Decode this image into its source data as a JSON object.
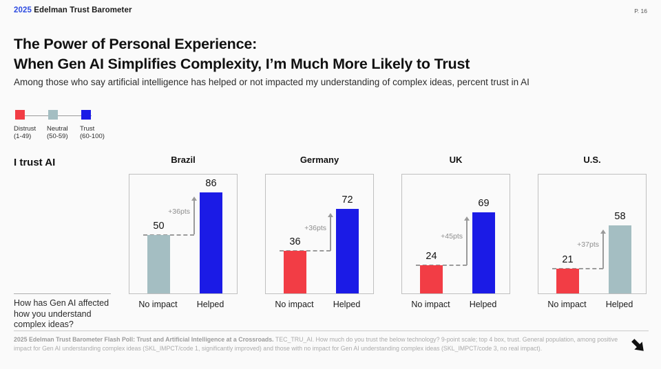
{
  "header": {
    "year": "2025",
    "brand": "Edelman Trust Barometer",
    "page": "P. 16"
  },
  "title": {
    "line1": "The Power of Personal Experience:",
    "line2": "When Gen AI Simplifies Complexity, I’m Much More Likely to Trust"
  },
  "subtitle": "Among those who say artificial intelligence has helped or not impacted my understanding of complex ideas, percent trust in AI",
  "colors": {
    "distrust": "#F23D45",
    "neutral": "#A4BEC2",
    "trust": "#1B1BE6",
    "accent_blue": "#2D4BE1",
    "annotation_gray": "#9a9a9a"
  },
  "legend": {
    "items": [
      {
        "label": "Distrust",
        "range": "(1-49)",
        "color_key": "distrust"
      },
      {
        "label": "Neutral",
        "range": "(50-59)",
        "color_key": "neutral"
      },
      {
        "label": "Trust",
        "range": "(60-100)",
        "color_key": "trust"
      }
    ]
  },
  "row_label": "I trust AI",
  "question": "How has Gen AI affected how you understand complex ideas?",
  "chart_data": {
    "type": "bar",
    "categories": [
      "No impact",
      "Helped"
    ],
    "unit": "percent trust in AI",
    "ylim": [
      0,
      100
    ],
    "grid": false,
    "groups": [
      {
        "country": "Brazil",
        "values": [
          50,
          86
        ],
        "color_keys": [
          "neutral",
          "trust"
        ],
        "delta": "+36pts"
      },
      {
        "country": "Germany",
        "values": [
          36,
          72
        ],
        "color_keys": [
          "distrust",
          "trust"
        ],
        "delta": "+36pts"
      },
      {
        "country": "UK",
        "values": [
          24,
          69
        ],
        "color_keys": [
          "distrust",
          "trust"
        ],
        "delta": "+45pts"
      },
      {
        "country": "U.S.",
        "values": [
          21,
          58
        ],
        "color_keys": [
          "distrust",
          "neutral"
        ],
        "delta": "+37pts"
      }
    ]
  },
  "footer": {
    "source_bold": "2025 Edelman Trust Barometer Flash Poll: Trust and Artificial Intelligence at a Crossroads.",
    "source_rest": " TEC_TRU_AI. How much do you trust the below technology? 9-point scale; top 4 box, trust. General population, among positive impact for Gen AI understanding complex ideas (SKL_IMPCT/code 1, significantly improved) and those with no impact for Gen AI understanding complex ideas (SKL_IMPCT/code 3, no real impact)."
  }
}
